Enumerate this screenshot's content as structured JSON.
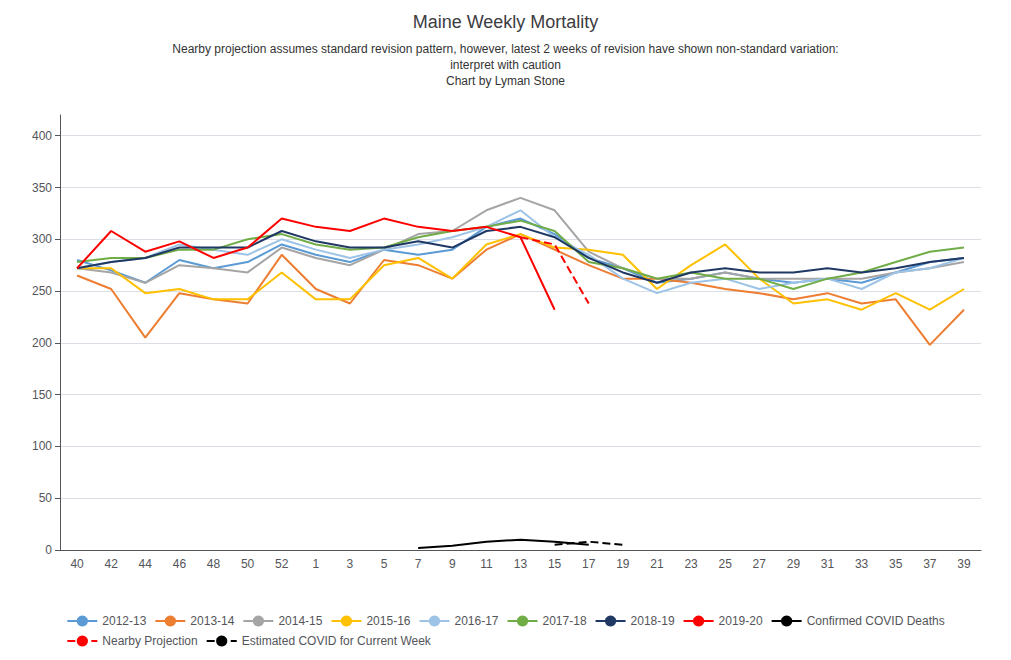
{
  "chart_data": {
    "type": "line",
    "title": "Maine Weekly Mortality",
    "subtitle": [
      "Nearby projection assumes standard revision pattern, however, latest 2 weeks of revision have shown non-standard variation:",
      "interpret with caution",
      "Chart by Lyman Stone"
    ],
    "categories": [
      "40",
      "42",
      "44",
      "46",
      "48",
      "50",
      "52",
      "1",
      "3",
      "5",
      "7",
      "9",
      "11",
      "13",
      "15",
      "17",
      "19",
      "21",
      "23",
      "25",
      "27",
      "29",
      "31",
      "33",
      "35",
      "37",
      "39"
    ],
    "ylim": [
      0,
      420
    ],
    "yticks": [
      0,
      50,
      100,
      150,
      200,
      250,
      300,
      350,
      400
    ],
    "grid": true,
    "legend": "bottom",
    "series": [
      {
        "name": "2012-13",
        "color": "#5B9BD5",
        "line_style": "solid",
        "values": [
          280,
          270,
          258,
          280,
          272,
          278,
          295,
          285,
          278,
          290,
          285,
          290,
          312,
          320,
          305,
          282,
          272,
          258,
          262,
          268,
          262,
          258,
          262,
          258,
          268,
          278,
          282
        ]
      },
      {
        "name": "2013-14",
        "color": "#ED7D31",
        "line_style": "solid",
        "values": [
          265,
          252,
          205,
          248,
          242,
          238,
          285,
          252,
          238,
          280,
          275,
          262,
          290,
          305,
          290,
          275,
          262,
          262,
          258,
          252,
          248,
          242,
          248,
          238,
          242,
          198,
          232
        ]
      },
      {
        "name": "2014-15",
        "color": "#A5A5A5",
        "line_style": "solid",
        "values": [
          272,
          268,
          258,
          275,
          272,
          268,
          292,
          282,
          275,
          290,
          305,
          308,
          328,
          340,
          328,
          288,
          272,
          262,
          262,
          268,
          262,
          262,
          262,
          262,
          268,
          272,
          278
        ]
      },
      {
        "name": "2015-16",
        "color": "#FFC000",
        "line_style": "solid",
        "values": [
          272,
          272,
          248,
          252,
          242,
          242,
          268,
          242,
          242,
          275,
          282,
          262,
          295,
          305,
          292,
          290,
          285,
          252,
          275,
          295,
          262,
          238,
          242,
          232,
          248,
          232,
          252
        ]
      },
      {
        "name": "2016-17",
        "color": "#9DC3E6",
        "line_style": "solid",
        "values": [
          272,
          278,
          282,
          295,
          290,
          285,
          300,
          290,
          282,
          290,
          295,
          302,
          312,
          328,
          302,
          285,
          262,
          248,
          258,
          262,
          252,
          258,
          262,
          252,
          268,
          272,
          282
        ]
      },
      {
        "name": "2017-18",
        "color": "#70AD47",
        "line_style": "solid",
        "values": [
          278,
          282,
          282,
          290,
          290,
          300,
          305,
          295,
          290,
          292,
          302,
          308,
          312,
          318,
          308,
          278,
          272,
          262,
          268,
          262,
          262,
          252,
          262,
          268,
          278,
          288,
          292
        ]
      },
      {
        "name": "2018-19",
        "color": "#1F3864",
        "line_style": "solid",
        "values": [
          272,
          278,
          282,
          292,
          292,
          292,
          308,
          298,
          292,
          292,
          298,
          292,
          308,
          312,
          302,
          282,
          268,
          258,
          268,
          272,
          268,
          268,
          272,
          268,
          272,
          278,
          282
        ]
      },
      {
        "name": "2019-20",
        "color": "#FF0000",
        "line_style": "solid",
        "values": [
          272,
          308,
          288,
          298,
          282,
          292,
          320,
          312,
          308,
          320,
          312,
          308,
          312,
          302,
          232,
          null,
          null,
          null,
          null,
          null,
          null,
          null,
          null,
          null,
          null,
          null,
          null
        ]
      },
      {
        "name": "Confirmed COVID Deaths",
        "color": "#000000",
        "line_style": "solid",
        "values": [
          null,
          null,
          null,
          null,
          null,
          null,
          null,
          null,
          null,
          null,
          2,
          4,
          8,
          10,
          8,
          5,
          null,
          null,
          null,
          null,
          null,
          null,
          null,
          null,
          null,
          null,
          null
        ]
      },
      {
        "name": "Nearby Projection",
        "color": "#FF0000",
        "line_style": "dashed",
        "values": [
          null,
          null,
          null,
          null,
          null,
          null,
          null,
          null,
          null,
          null,
          null,
          null,
          null,
          302,
          295,
          238,
          null,
          null,
          null,
          null,
          null,
          null,
          null,
          null,
          null,
          null,
          null
        ]
      },
      {
        "name": "Estimated COVID for Current Week",
        "color": "#000000",
        "line_style": "dashed",
        "values": [
          null,
          null,
          null,
          null,
          null,
          null,
          null,
          null,
          null,
          null,
          null,
          null,
          null,
          null,
          5,
          8,
          5,
          null,
          null,
          null,
          null,
          null,
          null,
          null,
          null,
          null,
          null
        ]
      }
    ]
  }
}
